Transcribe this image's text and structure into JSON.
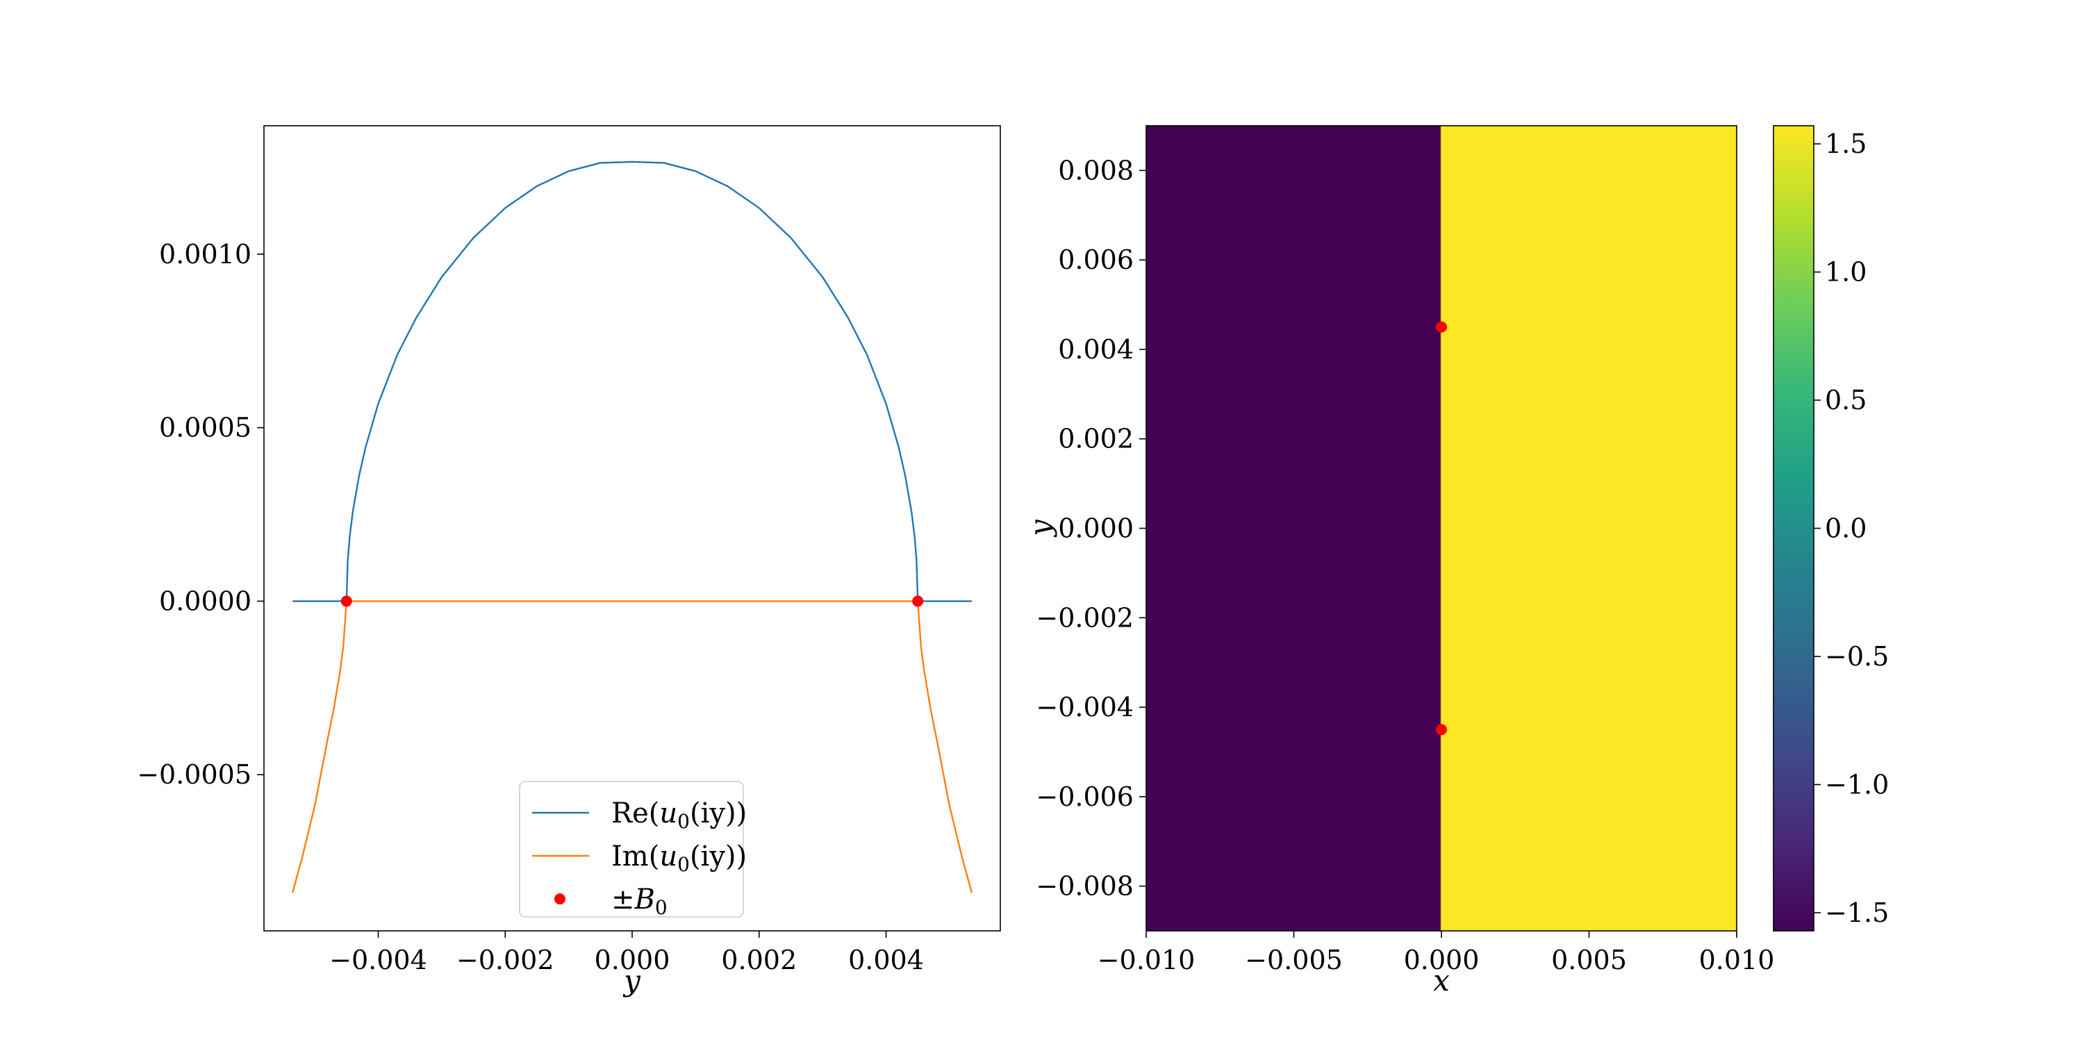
{
  "chart_data": [
    {
      "type": "line",
      "xlabel": "y",
      "ylabel": "",
      "xlim": [
        -0.0058,
        0.0058
      ],
      "ylim": [
        -0.00095,
        0.00137
      ],
      "xticks": [
        -0.004,
        -0.002,
        0.0,
        0.002,
        0.004
      ],
      "xtick_labels": [
        "−0.004",
        "−0.002",
        "0.000",
        "0.002",
        "0.004"
      ],
      "yticks": [
        -0.0005,
        0.0,
        0.0005,
        0.001
      ],
      "ytick_labels": [
        "−0.0005",
        "0.0000",
        "0.0005",
        "0.0010"
      ],
      "grid": false,
      "legend_position": "bottom-center",
      "B0": 0.0045,
      "series": [
        {
          "name": "Re(u₀(iy))",
          "color": "#1f77b4",
          "x": [
            -0.00535,
            -0.0045,
            -0.0045,
            -0.00448,
            -0.00445,
            -0.0044,
            -0.0043,
            -0.0042,
            -0.004,
            -0.0037,
            -0.0034,
            -0.003,
            -0.0025,
            -0.002,
            -0.0015,
            -0.001,
            -0.0005,
            0.0,
            0.0005,
            0.001,
            0.0015,
            0.002,
            0.0025,
            0.003,
            0.0034,
            0.0037,
            0.004,
            0.0042,
            0.0043,
            0.0044,
            0.00445,
            0.00448,
            0.0045,
            0.0045,
            0.00535
          ],
          "y": [
            0.0,
            0.0,
            0.0,
            0.000118,
            0.000185,
            0.000259,
            0.000363,
            0.000443,
            0.000569,
            0.00071,
            0.000817,
            0.000934,
            0.001047,
            0.001133,
            0.001196,
            0.001239,
            0.001263,
            0.001266,
            0.001263,
            0.001239,
            0.001196,
            0.001133,
            0.001047,
            0.000934,
            0.000817,
            0.00071,
            0.000569,
            0.000443,
            0.000363,
            0.000259,
            0.000185,
            0.000118,
            0.0,
            0.0,
            0.0
          ]
        },
        {
          "name": "Im(u₀(iy))",
          "color": "#ff7f0e",
          "x": [
            -0.00535,
            -0.0052,
            -0.005,
            -0.0048,
            -0.0047,
            -0.0046,
            -0.00455,
            -0.0045,
            0.0045,
            0.00455,
            0.0046,
            0.0047,
            0.0048,
            0.005,
            0.0052,
            0.00535
          ],
          "y": [
            -0.00084,
            -0.00074,
            -0.00059,
            -0.0004,
            -0.00031,
            -0.0002,
            -0.00013,
            0.0,
            0.0,
            -0.00013,
            -0.0002,
            -0.00031,
            -0.0004,
            -0.00059,
            -0.00074,
            -0.00084
          ]
        },
        {
          "name": "±B₀",
          "color": "#ff0000",
          "type": "scatter",
          "x": [
            -0.0045,
            0.0045
          ],
          "y": [
            0.0,
            0.0
          ]
        }
      ],
      "legend_entries": [
        {
          "label_main": "Re(",
          "label_var": "u",
          "label_sub": "0",
          "label_rest": "(iy))"
        },
        {
          "label_main": "Im(",
          "label_var": "u",
          "label_sub": "0",
          "label_rest": "(iy))"
        },
        {
          "label_main": "±",
          "label_var": "B",
          "label_sub": "0",
          "label_rest": ""
        }
      ]
    },
    {
      "type": "heatmap",
      "description_of_field": "phase (argument) of a complex function; branch cut on x=0 for |y|>B0",
      "xlabel": "x",
      "ylabel": "y",
      "xlim": [
        -0.01,
        0.01
      ],
      "ylim": [
        -0.009,
        0.009
      ],
      "xticks": [
        -0.01,
        -0.005,
        0.0,
        0.005,
        0.01
      ],
      "xtick_labels": [
        "−0.010",
        "−0.005",
        "0.000",
        "0.005",
        "0.010"
      ],
      "yticks": [
        -0.008,
        -0.006,
        -0.004,
        -0.002,
        0.0,
        0.002,
        0.004,
        0.006,
        0.008
      ],
      "ytick_labels": [
        "−0.008",
        "−0.006",
        "−0.004",
        "−0.002",
        "0.000",
        "0.002",
        "0.004",
        "0.006",
        "0.008"
      ],
      "points": [
        {
          "x": 0.0,
          "y": 0.0045
        },
        {
          "x": 0.0,
          "y": -0.0045
        }
      ],
      "point_color": "#ff0000",
      "colormap": "viridis",
      "colorbar": {
        "vmin": -1.5708,
        "vmax": 1.5708,
        "ticks": [
          -1.5,
          -1.0,
          -0.5,
          0.0,
          0.5,
          1.0,
          1.5
        ],
        "tick_labels": [
          "−1.5",
          "−1.0",
          "−0.5",
          "0.0",
          "0.5",
          "1.0",
          "1.5"
        ]
      }
    }
  ]
}
